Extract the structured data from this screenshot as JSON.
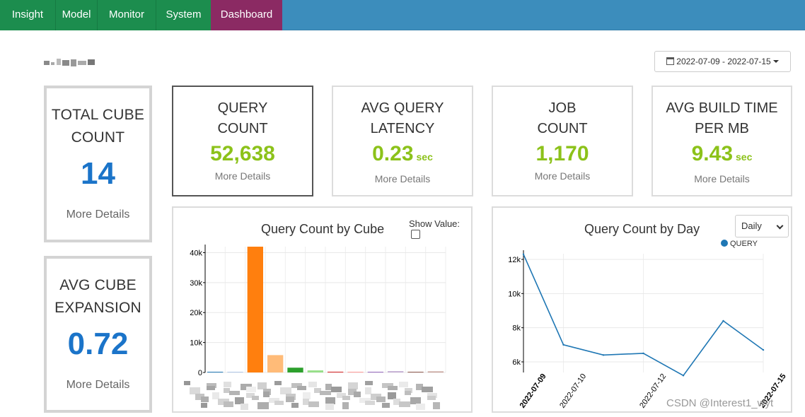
{
  "nav": {
    "items": [
      {
        "label": "Insight"
      },
      {
        "label": "Model"
      },
      {
        "label": "Monitor"
      },
      {
        "label": "System"
      },
      {
        "label": "Dashboard"
      }
    ],
    "active": "Dashboard"
  },
  "date_range": "2022-07-09 - 2022-07-15",
  "side_metrics": [
    {
      "title_line1": "TOTAL CUBE",
      "title_line2": "COUNT",
      "value": "14",
      "more": "More Details"
    },
    {
      "title_line1": "AVG CUBE",
      "title_line2": "EXPANSION",
      "value": "0.72",
      "more": "More Details"
    }
  ],
  "metrics": [
    {
      "title_line1": "QUERY",
      "title_line2": "COUNT",
      "value": "52,638",
      "unit": "",
      "more": "More Details"
    },
    {
      "title_line1": "AVG QUERY",
      "title_line2": "LATENCY",
      "value": "0.23",
      "unit": "sec",
      "more": "More Details"
    },
    {
      "title_line1": "JOB",
      "title_line2": "COUNT",
      "value": "1,170",
      "unit": "",
      "more": "More Details"
    },
    {
      "title_line1": "AVG BUILD TIME",
      "title_line2": "PER MB",
      "value": "9.43",
      "unit": "sec",
      "more": "More Details"
    }
  ],
  "cube_chart": {
    "title": "Query Count by Cube",
    "show_value_label": "Show Value:",
    "show_value_checked": false
  },
  "day_chart": {
    "title": "Query Count by Day",
    "period": "Daily",
    "legend": "QUERY"
  },
  "watermark": "CSDN @Interest1_wyt",
  "colors": {
    "nav_green": "#1c8d4e",
    "nav_blue": "#3c8dbc",
    "nav_active": "#8b2a63",
    "side_value": "#1b74c9",
    "metric_value": "#8cc21a",
    "line": "#1f77b4"
  },
  "chart_data": [
    {
      "type": "bar",
      "title": "Query Count by Cube",
      "ylim": [
        0,
        42000
      ],
      "yticks": [
        "0",
        "10k",
        "20k",
        "30k",
        "40k"
      ],
      "values": [
        200,
        100,
        42000,
        5800,
        1600,
        700,
        250,
        200,
        150,
        450,
        200,
        350
      ],
      "colors": [
        "#1f77b4",
        "#aec7e8",
        "#ff7f0e",
        "#ffbb78",
        "#2ca02c",
        "#98df8a",
        "#d62728",
        "#ff9896",
        "#9467bd",
        "#c5b0d5",
        "#8c564b",
        "#c49c94"
      ],
      "categories_note": "category labels are obscured"
    },
    {
      "type": "line",
      "title": "Query Count by Day",
      "series": [
        {
          "name": "QUERY",
          "x": [
            "2022-07-09",
            "2022-07-10",
            "2022-07-11",
            "2022-07-12",
            "2022-07-13",
            "2022-07-14",
            "2022-07-15"
          ],
          "y": [
            12300,
            7000,
            6400,
            6500,
            5200,
            8400,
            6700
          ]
        }
      ],
      "yticks": [
        "6k",
        "8k",
        "10k",
        "12k"
      ],
      "xticks": [
        "2022-07-09",
        "2022-07-10",
        "2022-07-12",
        "2022-07-15"
      ],
      "ylim": [
        5200,
        12300
      ]
    }
  ]
}
